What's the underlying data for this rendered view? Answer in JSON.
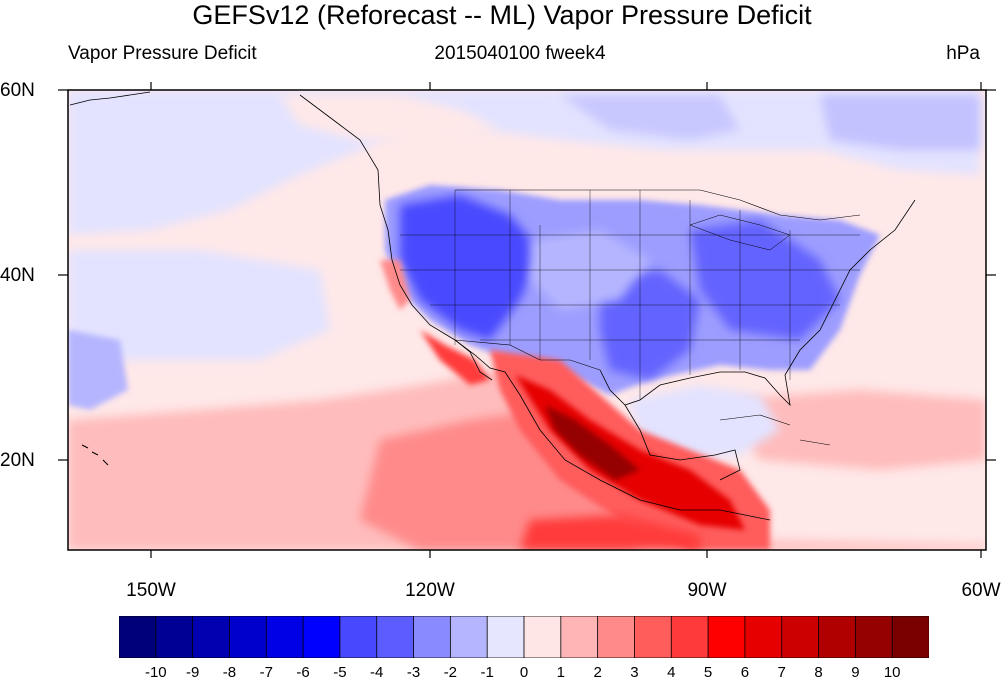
{
  "title": "GEFSv12 (Reforecast -- ML) Vapor Pressure Deficit",
  "subtitle_left": "Vapor Pressure Deficit",
  "subtitle_center": "2015040100 fweek4",
  "units": "hPa",
  "lat_labels": [
    "60N",
    "40N",
    "20N"
  ],
  "lon_labels": [
    "150W",
    "120W",
    "90W",
    "60W"
  ],
  "colorbar": {
    "labels": [
      "-10",
      "-9",
      "-8",
      "-7",
      "-6",
      "-5",
      "-4",
      "-3",
      "-2",
      "-1",
      "0",
      "1",
      "2",
      "3",
      "4",
      "5",
      "6",
      "7",
      "8",
      "9",
      "10"
    ],
    "colors": [
      "#00007a",
      "#000095",
      "#0000b0",
      "#0000cc",
      "#0000e6",
      "#0000ff",
      "#4848ff",
      "#5c5cff",
      "#8a8aff",
      "#b5b5ff",
      "#e6e6ff",
      "#ffe6e6",
      "#ffb5b5",
      "#ff8a8a",
      "#ff5c5c",
      "#ff3a3a",
      "#ff0000",
      "#e60000",
      "#cc0000",
      "#b00000",
      "#950000",
      "#7a0000"
    ]
  },
  "palette": {
    "ocean_pale": "#ffe8e8",
    "ocean_light_red": "#ffbcbc",
    "blue_pale": "#e3e3ff",
    "blue_mid": "#9d9dff",
    "blue_dark": "#4a4aff",
    "red_mid": "#ff5c5c",
    "red_dark": "#cc0000",
    "border": "#000000"
  },
  "map_features": {
    "regions": "North Pacific, Contiguous United States, Mexico, Gulf of Mexico, Caribbean",
    "projection": "cylindrical equidistant"
  }
}
